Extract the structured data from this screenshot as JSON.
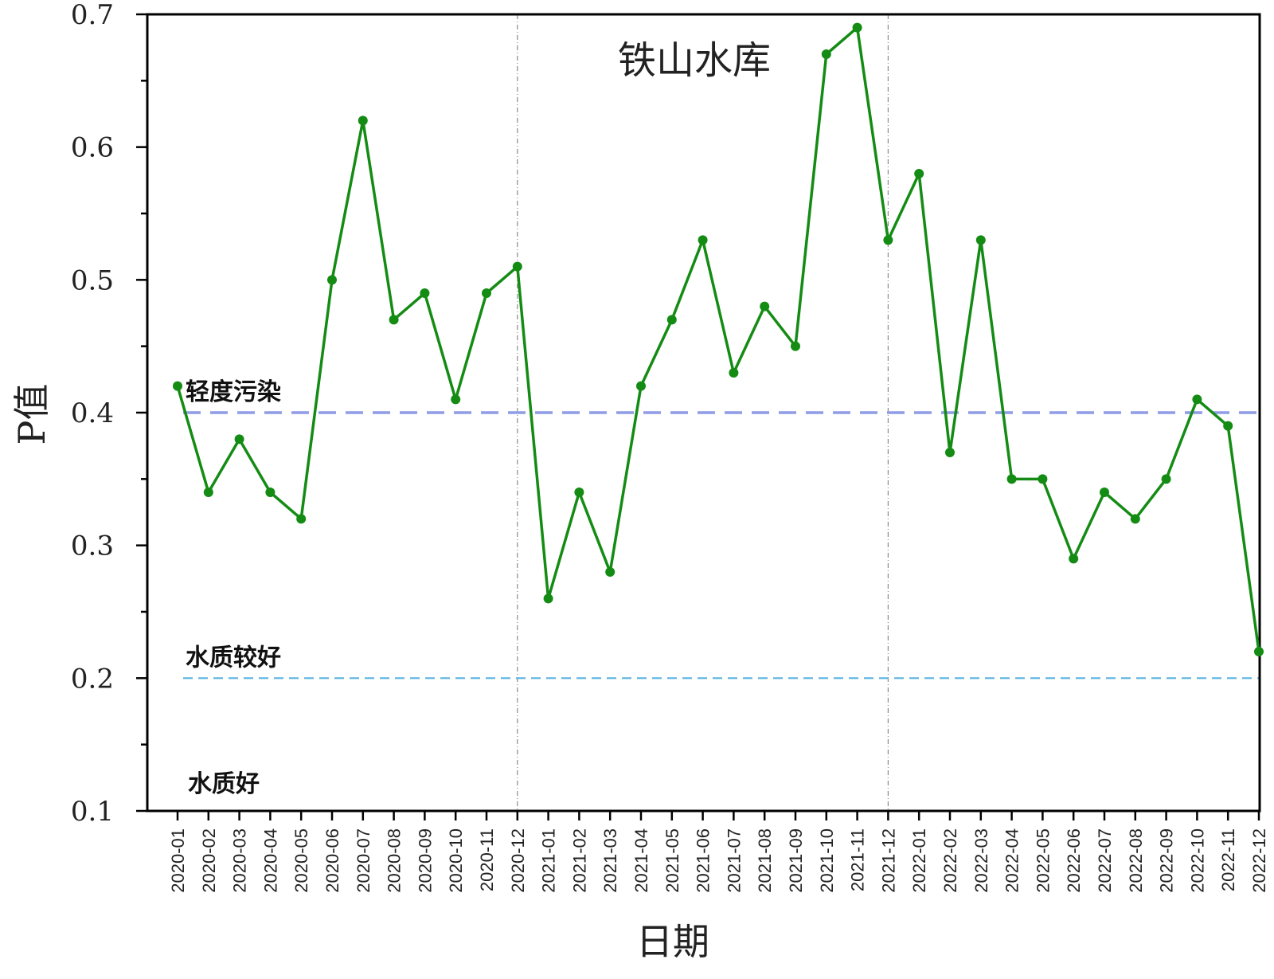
{
  "chart_data": {
    "type": "line",
    "title": "铁山水库",
    "xlabel": "日期",
    "ylabel": "P值",
    "ylim": [
      0.1,
      0.7
    ],
    "yticks": [
      "0.1",
      "0.2",
      "0.3",
      "0.4",
      "0.5",
      "0.6",
      "0.7"
    ],
    "grid": false,
    "categories": [
      "2020-01",
      "2020-02",
      "2020-03",
      "2020-04",
      "2020-05",
      "2020-06",
      "2020-07",
      "2020-08",
      "2020-09",
      "2020-10",
      "2020-11",
      "2020-12",
      "2021-01",
      "2021-02",
      "2021-03",
      "2021-04",
      "2021-05",
      "2021-06",
      "2021-07",
      "2021-08",
      "2021-09",
      "2021-10",
      "2021-11",
      "2021-12",
      "2022-01",
      "2022-02",
      "2022-03",
      "2022-04",
      "2022-05",
      "2022-06",
      "2022-07",
      "2022-08",
      "2022-09",
      "2022-10",
      "2022-11",
      "2022-12"
    ],
    "series": [
      {
        "color": "#148c14",
        "values": [
          0.42,
          0.34,
          0.38,
          0.34,
          0.32,
          0.5,
          0.62,
          0.47,
          0.49,
          0.41,
          0.49,
          0.51,
          0.26,
          0.34,
          0.28,
          0.42,
          0.47,
          0.53,
          0.43,
          0.48,
          0.45,
          0.67,
          0.69,
          0.53,
          0.58,
          0.37,
          0.53,
          0.35,
          0.35,
          0.29,
          0.34,
          0.32,
          0.35,
          0.41,
          0.39,
          0.22
        ]
      }
    ],
    "reference_lines": [
      {
        "value": 0.4,
        "label": "轻度污染",
        "color": "#8f9ce6",
        "style": "dashed"
      },
      {
        "value": 0.2,
        "label": "水质较好",
        "color": "#5ab4e0",
        "style": "dashed"
      }
    ],
    "region_labels": [
      {
        "label": "水质好",
        "at_value": 0.1
      }
    ],
    "year_dividers": [
      "2020-12",
      "2021-12"
    ]
  }
}
